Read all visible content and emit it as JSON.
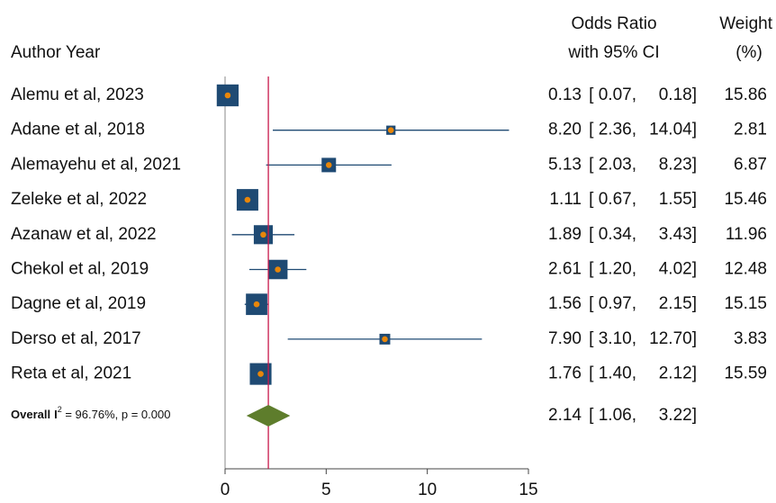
{
  "chart_data": {
    "type": "forest",
    "header_study": "Author Year",
    "header_effect": [
      "Odds Ratio",
      "with 95% CI"
    ],
    "header_weight": [
      "Weight",
      "(%)"
    ],
    "categories": [
      "Alemu et al, 2023",
      "Adane et al, 2018",
      "Alemayehu et al, 2021",
      "Zeleke et al, 2022",
      "Azanaw et al, 2022",
      "Chekol et al, 2019",
      "Dagne et al, 2019",
      "Derso et al, 2017",
      "Reta et al, 2021"
    ],
    "values": [
      0.13,
      8.2,
      5.13,
      1.11,
      1.89,
      2.61,
      1.56,
      7.9,
      1.76
    ],
    "value_labels": [
      "0.13",
      "8.20",
      "5.13",
      "1.11",
      "1.89",
      "2.61",
      "1.56",
      "7.90",
      "1.76"
    ],
    "lower": [
      0.07,
      2.36,
      2.03,
      0.67,
      0.34,
      1.2,
      0.97,
      3.1,
      1.4
    ],
    "lower_labels": [
      "[ 0.07,",
      "[ 2.36,",
      "[ 2.03,",
      "[ 0.67,",
      "[ 0.34,",
      "[ 1.20,",
      "[ 0.97,",
      "[ 3.10,",
      "[ 1.40,"
    ],
    "upper": [
      0.18,
      14.04,
      8.23,
      1.55,
      3.43,
      4.02,
      2.15,
      12.7,
      2.12
    ],
    "upper_labels": [
      "0.18]",
      "14.04]",
      "8.23]",
      "1.55]",
      "3.43]",
      "4.02]",
      "2.15]",
      "12.70]",
      "2.12]"
    ],
    "weights": [
      15.86,
      2.81,
      6.87,
      15.46,
      11.96,
      12.48,
      15.15,
      3.83,
      15.59
    ],
    "overall": {
      "label": "Overall",
      "stat": "I",
      "stat_sup": "2",
      "stat_text": " = 96.76%, p = 0.000",
      "value": 2.14,
      "value_label": "2.14",
      "lower": 1.06,
      "lower_label": "[ 1.06,",
      "upper": 3.22,
      "upper_label": "3.22]"
    },
    "xlim": [
      0,
      15
    ],
    "xticks": [
      0,
      5,
      10,
      15
    ],
    "box_color": "#1f4a73",
    "point_color": "#e8860a",
    "diamond_color": "#5e7d2c",
    "overall_line_color": "#c8194b"
  }
}
